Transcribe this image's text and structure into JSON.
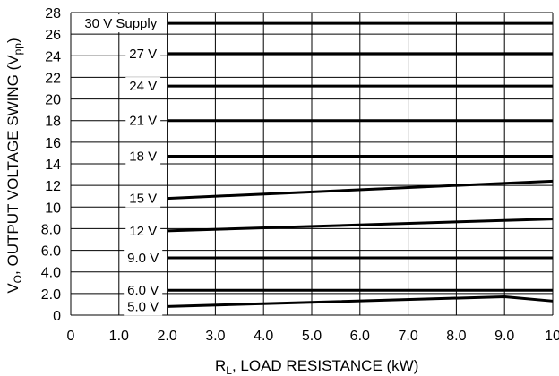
{
  "chart_data": {
    "type": "line",
    "xlabel": "R",
    "xlabel_sub": "L",
    "xlabel_rest": ", LOAD RESISTANCE (kW)",
    "ylabel": "V",
    "ylabel_sub": "O",
    "ylabel_mid": ", OUTPUT VOLTAGE SWING (V",
    "ylabel_sub2": "pp",
    "ylabel_end": ")",
    "xlim": [
      0,
      10
    ],
    "ylim": [
      0,
      28
    ],
    "grid": true,
    "x_ticks": [
      {
        "v": 0,
        "label": "0"
      },
      {
        "v": 1,
        "label": "1.0"
      },
      {
        "v": 2,
        "label": "2.0"
      },
      {
        "v": 3,
        "label": "3.0"
      },
      {
        "v": 4,
        "label": "4.0"
      },
      {
        "v": 5,
        "label": "5.0"
      },
      {
        "v": 6,
        "label": "6.0"
      },
      {
        "v": 7,
        "label": "7.0"
      },
      {
        "v": 8,
        "label": "8.0"
      },
      {
        "v": 9,
        "label": "9.0"
      },
      {
        "v": 10,
        "label": "10"
      }
    ],
    "y_ticks": [
      {
        "v": 0,
        "label": "0"
      },
      {
        "v": 2,
        "label": "2.0"
      },
      {
        "v": 4,
        "label": "4.0"
      },
      {
        "v": 6,
        "label": "6.0"
      },
      {
        "v": 8,
        "label": "8.0"
      },
      {
        "v": 10,
        "label": "10"
      },
      {
        "v": 12,
        "label": "12"
      },
      {
        "v": 14,
        "label": "14"
      },
      {
        "v": 16,
        "label": "16"
      },
      {
        "v": 18,
        "label": "18"
      },
      {
        "v": 20,
        "label": "20"
      },
      {
        "v": 22,
        "label": "22"
      },
      {
        "v": 24,
        "label": "24"
      },
      {
        "v": 26,
        "label": "26"
      },
      {
        "v": 28,
        "label": "28"
      }
    ],
    "series": [
      {
        "name": "30 V Supply",
        "x": [
          2.0,
          10
        ],
        "y": [
          27.0,
          27.0
        ]
      },
      {
        "name": "27 V",
        "x": [
          2.0,
          10
        ],
        "y": [
          24.2,
          24.2
        ]
      },
      {
        "name": "24 V",
        "x": [
          2.0,
          10
        ],
        "y": [
          21.2,
          21.2
        ]
      },
      {
        "name": "21 V",
        "x": [
          2.0,
          10
        ],
        "y": [
          18.0,
          18.0
        ]
      },
      {
        "name": "18 V",
        "x": [
          2.0,
          10
        ],
        "y": [
          14.7,
          14.7
        ]
      },
      {
        "name": "15 V",
        "x": [
          2.0,
          10
        ],
        "y": [
          10.8,
          12.4
        ]
      },
      {
        "name": "12 V",
        "x": [
          2.0,
          10
        ],
        "y": [
          7.8,
          8.9
        ]
      },
      {
        "name": "9.0 V",
        "x": [
          2.0,
          10
        ],
        "y": [
          5.3,
          5.3
        ]
      },
      {
        "name": "6.0 V",
        "x": [
          2.0,
          10
        ],
        "y": [
          2.3,
          2.3
        ]
      },
      {
        "name": "5.0 V",
        "x": [
          2.0,
          9.0,
          10
        ],
        "y": [
          0.8,
          1.7,
          1.3
        ]
      }
    ]
  }
}
